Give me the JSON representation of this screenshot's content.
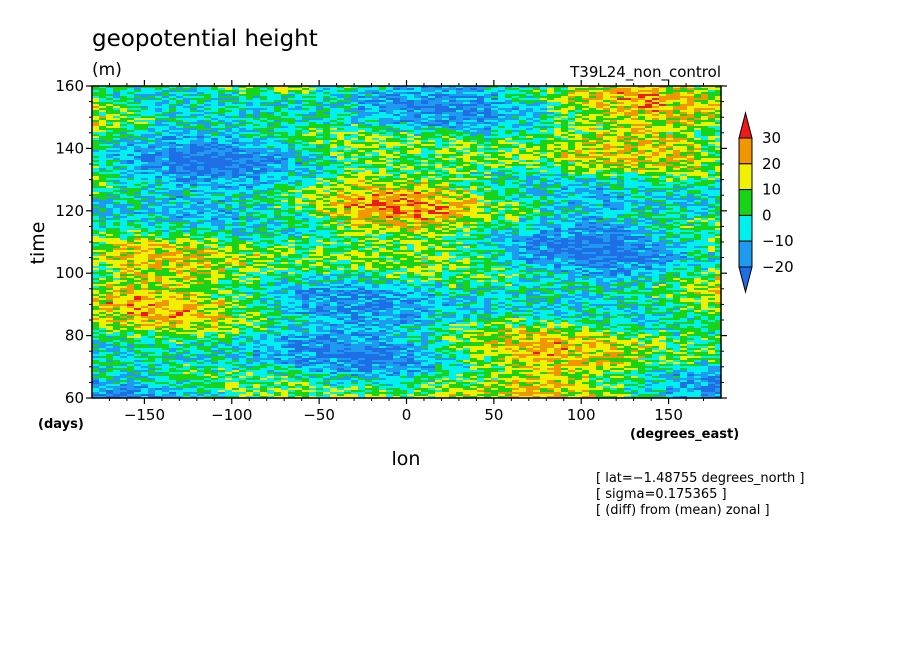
{
  "chart_data": {
    "type": "heatmap",
    "title": "geopotential height",
    "units": "(m)",
    "experiment": "T39L24_non_control",
    "xlabel": "lon",
    "ylabel": "time",
    "x_units": "(degrees_east)",
    "y_units": "(days)",
    "xlim": [
      -180,
      180
    ],
    "ylim": [
      60,
      160
    ],
    "x_ticks": [
      -150,
      -100,
      -50,
      0,
      50,
      100,
      150
    ],
    "y_ticks": [
      60,
      80,
      100,
      120,
      140,
      160
    ],
    "x_tick_labels": [
      "−150",
      "−100",
      "−50",
      "0",
      "50",
      "100",
      "150"
    ],
    "y_tick_labels": [
      "60",
      "80",
      "100",
      "120",
      "140",
      "160"
    ],
    "colorbar": {
      "levels": [
        -20,
        -10,
        0,
        10,
        20,
        30
      ],
      "level_labels": [
        "−20",
        "−10",
        "0",
        "10",
        "20",
        "30"
      ],
      "colors": [
        "#1e6ee6",
        "#1e9bf0",
        "#00f0f0",
        "#18d418",
        "#f0f000",
        "#f09600",
        "#f01818"
      ],
      "extend": "both"
    },
    "notes": [
      "[ lat=−1.48755 degrees_north ]",
      "[ sigma=0.175365 ]",
      "[ (diff) from (mean) zonal ]"
    ]
  }
}
